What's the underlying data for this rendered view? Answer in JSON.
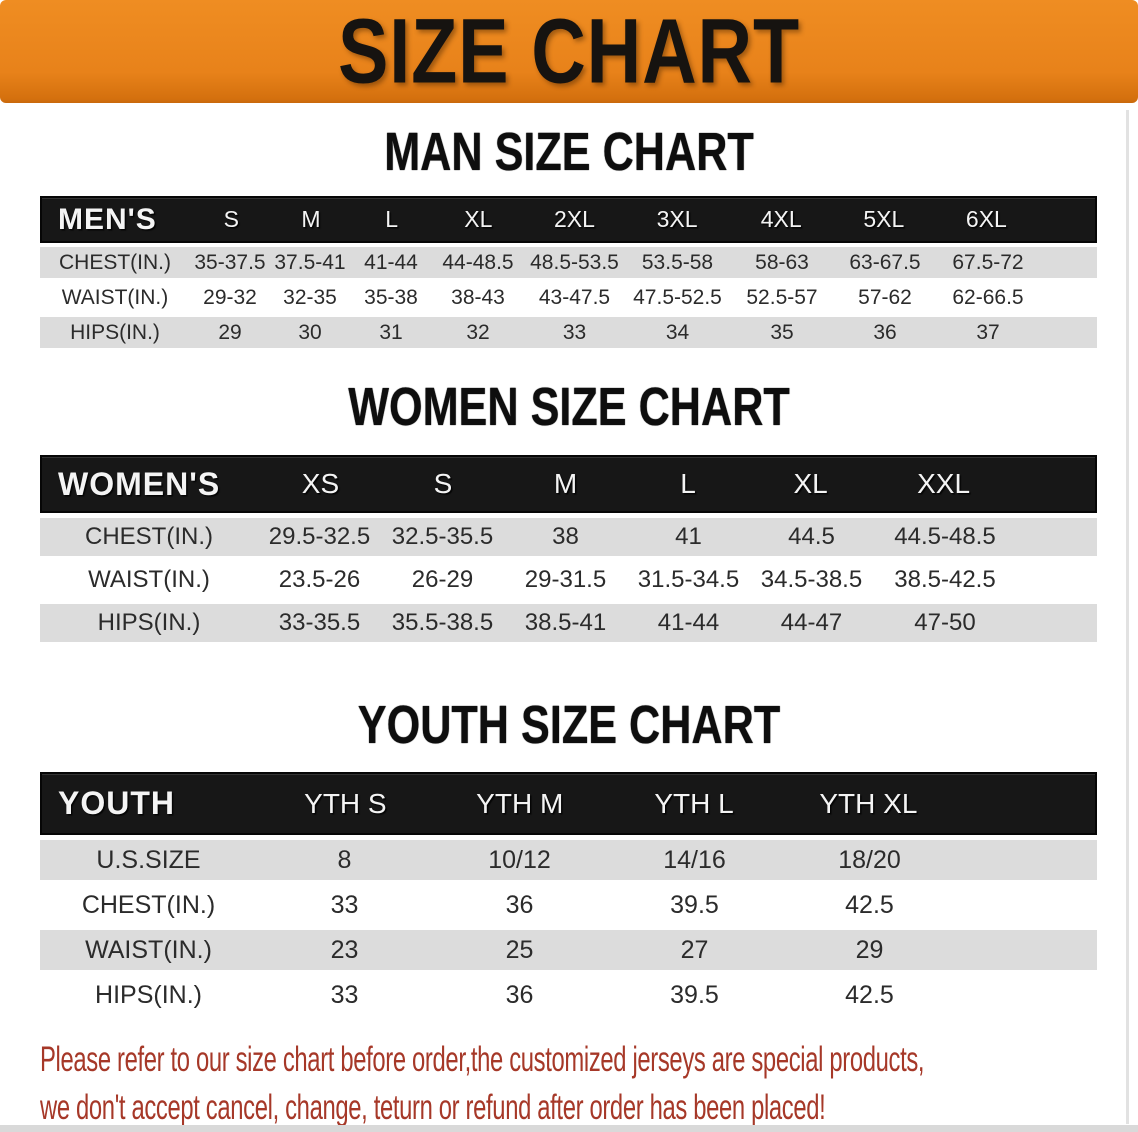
{
  "banner": {
    "title": "SIZE CHART"
  },
  "colors": {
    "banner_orange": "#E8821A",
    "header_bar_black": "#171717",
    "row_gray": "#DCDCDC",
    "row_white": "#FFFFFF",
    "disclaimer_red": "#A63828"
  },
  "sections": [
    {
      "key": "men",
      "heading": "MAN SIZE CHART",
      "table": {
        "corner_label": "MEN'S",
        "columns": [
          "S",
          "M",
          "L",
          "XL",
          "2XL",
          "3XL",
          "4XL",
          "5XL",
          "6XL"
        ],
        "rows": [
          {
            "label": "CHEST(IN.)",
            "values": [
              "35-37.5",
              "37.5-41",
              "41-44",
              "44-48.5",
              "48.5-53.5",
              "53.5-58",
              "58-63",
              "63-67.5",
              "67.5-72"
            ]
          },
          {
            "label": "WAIST(IN.)",
            "values": [
              "29-32",
              "32-35",
              "35-38",
              "38-43",
              "43-47.5",
              "47.5-52.5",
              "52.5-57",
              "57-62",
              "62-66.5"
            ]
          },
          {
            "label": "HIPS(IN.)",
            "values": [
              "29",
              "30",
              "31",
              "32",
              "33",
              "34",
              "35",
              "36",
              "37"
            ]
          }
        ]
      }
    },
    {
      "key": "women",
      "heading": "WOMEN SIZE CHART",
      "table": {
        "corner_label": "WOMEN'S",
        "columns": [
          "XS",
          "S",
          "M",
          "L",
          "XL",
          "XXL"
        ],
        "rows": [
          {
            "label": "CHEST(IN.)",
            "values": [
              "29.5-32.5",
              "32.5-35.5",
              "38",
              "41",
              "44.5",
              "44.5-48.5"
            ]
          },
          {
            "label": "WAIST(IN.)",
            "values": [
              "23.5-26",
              "26-29",
              "29-31.5",
              "31.5-34.5",
              "34.5-38.5",
              "38.5-42.5"
            ]
          },
          {
            "label": "HIPS(IN.)",
            "values": [
              "33-35.5",
              "35.5-38.5",
              "38.5-41",
              "41-44",
              "44-47",
              "47-50"
            ]
          }
        ]
      }
    },
    {
      "key": "youth",
      "heading": "YOUTH SIZE CHART",
      "table": {
        "corner_label": "YOUTH",
        "columns": [
          "YTH S",
          "YTH M",
          "YTH L",
          "YTH XL"
        ],
        "rows": [
          {
            "label": "U.S.SIZE",
            "values": [
              "8",
              "10/12",
              "14/16",
              "18/20"
            ]
          },
          {
            "label": "CHEST(IN.)",
            "values": [
              "33",
              "36",
              "39.5",
              "42.5"
            ]
          },
          {
            "label": "WAIST(IN.)",
            "values": [
              "23",
              "25",
              "27",
              "29"
            ]
          },
          {
            "label": "HIPS(IN.)",
            "values": [
              "33",
              "36",
              "39.5",
              "42.5"
            ]
          }
        ]
      }
    }
  ],
  "disclaimer": {
    "line1": "Please refer to our size chart before order,the customized jerseys are special products,",
    "line2": "we don't accept cancel, change, teturn or refund after order has been placed!"
  }
}
